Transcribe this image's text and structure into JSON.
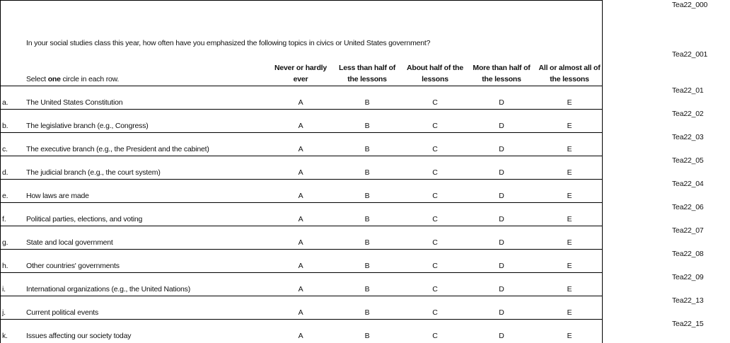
{
  "question": "In your social studies class this year, how often have you emphasized the following topics in civics or United States government?",
  "instruction": {
    "pre": "Select ",
    "bold": "one",
    "post": " circle in each row."
  },
  "columns": [
    "Never or hardly\never",
    "Less than half of\nthe lessons",
    "About half of the\nlessons",
    "More than half of\nthe lessons",
    "All or almost all of\nthe lessons"
  ],
  "options": [
    "A",
    "B",
    "C",
    "D",
    "E"
  ],
  "rows": [
    {
      "letter": "a.",
      "text": "The United States Constitution",
      "code": "Tea22_01"
    },
    {
      "letter": "b.",
      "text": "The legislative branch (e.g., Congress)",
      "code": "Tea22_02"
    },
    {
      "letter": "c.",
      "text": "The executive branch (e.g., the President and the cabinet)",
      "code": "Tea22_03"
    },
    {
      "letter": "d.",
      "text": "The judicial branch (e.g., the court system)",
      "code": "Tea22_05"
    },
    {
      "letter": "e.",
      "text": "How laws are made",
      "code": "Tea22_04"
    },
    {
      "letter": "f.",
      "text": "Political parties, elections, and voting",
      "code": "Tea22_06"
    },
    {
      "letter": "g.",
      "text": "State and local government",
      "code": "Tea22_07"
    },
    {
      "letter": "h.",
      "text": "Other countries' governments",
      "code": "Tea22_08"
    },
    {
      "letter": "i.",
      "text": "International organizations (e.g., the United Nations)",
      "code": "Tea22_09"
    },
    {
      "letter": "j.",
      "text": "Current political events",
      "code": "Tea22_13"
    },
    {
      "letter": "k.",
      "text": "Issues affecting our society today",
      "code": "Tea22_15"
    }
  ],
  "codes": {
    "top": "Tea22_000",
    "question": "Tea22_001"
  }
}
